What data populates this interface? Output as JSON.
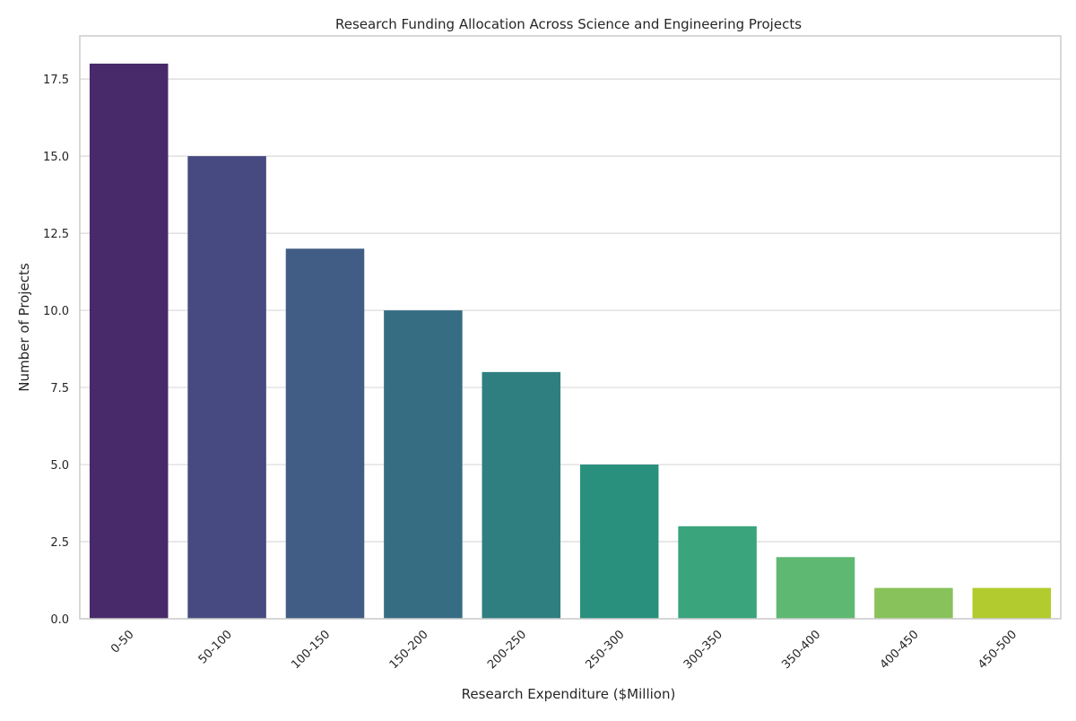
{
  "chart_data": {
    "type": "bar",
    "title": "Research Funding Allocation Across Science and Engineering Projects",
    "xlabel": "Research Expenditure ($Million)",
    "ylabel": "Number of Projects",
    "categories": [
      "0-50",
      "50-100",
      "100-150",
      "150-200",
      "200-250",
      "250-300",
      "300-350",
      "350-400",
      "400-450",
      "450-500"
    ],
    "values": [
      18,
      15,
      12,
      10,
      8,
      5,
      3,
      2,
      1,
      1
    ],
    "ylim": [
      0,
      18.9
    ],
    "yticks": [
      "0.0",
      "2.5",
      "5.0",
      "7.5",
      "10.0",
      "12.5",
      "15.0",
      "17.5"
    ],
    "grid": "horizontal",
    "colors": [
      "#482a6a",
      "#464a80",
      "#415d86",
      "#376d83",
      "#2f7f80",
      "#2a907e",
      "#3aa47c",
      "#5fb871",
      "#88c25a",
      "#b2cb2e"
    ],
    "grid_color": "#d9d9d9",
    "spine_color": "#cccccc"
  }
}
